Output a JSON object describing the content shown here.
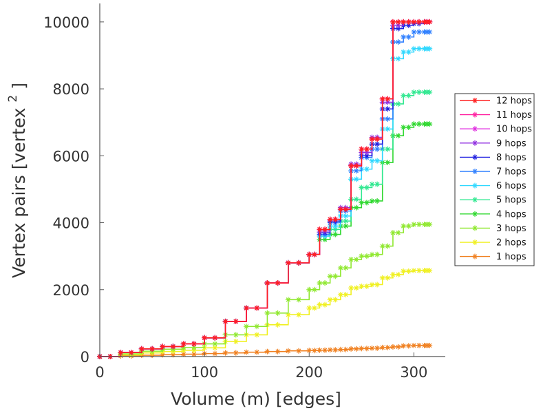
{
  "chart_data": {
    "type": "line",
    "title": "",
    "xlabel": "Volume (m) [edges]",
    "ylabel": "Vertex pairs [vertex",
    "ylabel_superscript": "2",
    "ylabel_close": "]",
    "xlim": [
      0,
      330
    ],
    "ylim": [
      0,
      10100
    ],
    "xticks": [
      0,
      100,
      200,
      300
    ],
    "xtick_labels": [
      "0",
      "100",
      "200",
      "300"
    ],
    "yticks": [
      0,
      2000,
      4000,
      6000,
      8000,
      10000
    ],
    "ytick_labels": [
      "0",
      "2000",
      "4000",
      "6000",
      "8000",
      "10000"
    ],
    "grid": false,
    "legend_position": "right",
    "marker": "asterisk",
    "series": [
      {
        "name": "12 hops",
        "color": "#ff2020",
        "x": [
          0,
          20,
          40,
          60,
          80,
          100,
          120,
          140,
          160,
          180,
          200,
          210,
          220,
          230,
          240,
          250,
          260,
          270,
          280,
          290,
          300,
          310,
          315
        ],
        "y": [
          0,
          120,
          230,
          300,
          380,
          560,
          1050,
          1450,
          2200,
          2800,
          3050,
          3800,
          4100,
          4400,
          5700,
          6200,
          6500,
          7700,
          10000,
          10000,
          10000,
          10000,
          10000
        ]
      },
      {
        "name": "11 hops",
        "color": "#ff20a0",
        "x": [
          0,
          20,
          40,
          60,
          80,
          100,
          120,
          140,
          160,
          180,
          200,
          210,
          220,
          230,
          240,
          250,
          260,
          270,
          280,
          290,
          300,
          310,
          315
        ],
        "y": [
          0,
          120,
          230,
          300,
          380,
          560,
          1050,
          1450,
          2200,
          2800,
          3050,
          3800,
          4100,
          4400,
          5700,
          6200,
          6500,
          7700,
          10000,
          10000,
          10000,
          10000,
          10000
        ]
      },
      {
        "name": "10 hops",
        "color": "#e030e0",
        "x": [
          0,
          20,
          40,
          60,
          80,
          100,
          120,
          140,
          160,
          180,
          200,
          210,
          220,
          230,
          240,
          250,
          260,
          270,
          280,
          290,
          300,
          310,
          315
        ],
        "y": [
          0,
          120,
          230,
          300,
          380,
          560,
          1050,
          1450,
          2200,
          2800,
          3050,
          3800,
          4100,
          4400,
          5700,
          6200,
          6500,
          7700,
          10000,
          10000,
          10000,
          10000,
          10000
        ]
      },
      {
        "name": "9 hops",
        "color": "#9030e0",
        "x": [
          0,
          20,
          40,
          60,
          80,
          100,
          120,
          140,
          160,
          180,
          200,
          210,
          220,
          230,
          240,
          250,
          260,
          270,
          280,
          290,
          300,
          310,
          315
        ],
        "y": [
          0,
          120,
          230,
          300,
          380,
          560,
          1050,
          1450,
          2200,
          2800,
          3050,
          3750,
          4100,
          4450,
          5750,
          6100,
          6550,
          7600,
          9900,
          10000,
          10000,
          10000,
          10000
        ]
      },
      {
        "name": "8 hops",
        "color": "#2020e0",
        "x": [
          0,
          20,
          40,
          60,
          80,
          100,
          120,
          140,
          160,
          180,
          200,
          210,
          220,
          230,
          240,
          250,
          260,
          270,
          280,
          290,
          300,
          310,
          315
        ],
        "y": [
          0,
          120,
          230,
          300,
          380,
          560,
          1050,
          1450,
          2200,
          2800,
          3050,
          3700,
          4050,
          4400,
          5700,
          6000,
          6350,
          7400,
          9800,
          9900,
          9950,
          10000,
          10000
        ]
      },
      {
        "name": "7 hops",
        "color": "#3080ff",
        "x": [
          0,
          20,
          40,
          60,
          80,
          100,
          120,
          140,
          160,
          180,
          200,
          210,
          220,
          230,
          240,
          250,
          260,
          270,
          280,
          290,
          300,
          310,
          315
        ],
        "y": [
          0,
          120,
          230,
          300,
          380,
          560,
          1050,
          1450,
          2200,
          2800,
          3050,
          3650,
          4000,
          4350,
          5550,
          5950,
          6200,
          7100,
          9400,
          9550,
          9700,
          9700,
          9700
        ]
      },
      {
        "name": "6 hops",
        "color": "#30d8ff",
        "x": [
          0,
          20,
          40,
          60,
          80,
          100,
          120,
          140,
          160,
          180,
          200,
          210,
          220,
          230,
          240,
          250,
          260,
          270,
          280,
          290,
          300,
          310,
          315
        ],
        "y": [
          0,
          120,
          230,
          300,
          380,
          560,
          1050,
          1450,
          2200,
          2800,
          3050,
          3600,
          3900,
          4200,
          5300,
          5600,
          5850,
          6800,
          8900,
          9100,
          9200,
          9200,
          9200
        ]
      },
      {
        "name": "5 hops",
        "color": "#30e890",
        "x": [
          0,
          20,
          40,
          60,
          80,
          100,
          120,
          140,
          160,
          180,
          200,
          210,
          220,
          230,
          240,
          250,
          260,
          270,
          280,
          290,
          300,
          310,
          315
        ],
        "y": [
          0,
          120,
          230,
          300,
          380,
          560,
          1050,
          1450,
          2200,
          2800,
          3050,
          3600,
          3800,
          4050,
          4700,
          5050,
          5150,
          6200,
          7550,
          7800,
          7900,
          7900,
          7900
        ]
      },
      {
        "name": "4 hops",
        "color": "#30d830",
        "x": [
          0,
          20,
          40,
          60,
          80,
          100,
          120,
          140,
          160,
          180,
          200,
          210,
          220,
          230,
          240,
          250,
          260,
          270,
          280,
          290,
          300,
          310,
          315
        ],
        "y": [
          0,
          120,
          230,
          300,
          380,
          560,
          1050,
          1450,
          2200,
          2800,
          3050,
          3500,
          3650,
          3900,
          4450,
          4600,
          4650,
          5800,
          6600,
          6850,
          6950,
          6950,
          6950
        ]
      },
      {
        "name": "3 hops",
        "color": "#90e830",
        "x": [
          0,
          20,
          40,
          60,
          80,
          100,
          120,
          140,
          160,
          180,
          200,
          210,
          220,
          230,
          240,
          250,
          260,
          270,
          280,
          290,
          300,
          310,
          315
        ],
        "y": [
          0,
          80,
          160,
          220,
          270,
          380,
          650,
          900,
          1300,
          1700,
          2000,
          2200,
          2400,
          2650,
          2900,
          3000,
          3050,
          3300,
          3700,
          3900,
          3950,
          3950,
          3950
        ]
      },
      {
        "name": "2 hops",
        "color": "#f0f020",
        "x": [
          0,
          20,
          40,
          60,
          80,
          100,
          120,
          140,
          160,
          180,
          200,
          210,
          220,
          230,
          240,
          250,
          260,
          270,
          280,
          290,
          300,
          310,
          315
        ],
        "y": [
          0,
          50,
          110,
          150,
          190,
          260,
          450,
          650,
          950,
          1250,
          1450,
          1550,
          1700,
          1850,
          2050,
          2100,
          2150,
          2350,
          2450,
          2550,
          2570,
          2570,
          2570
        ]
      },
      {
        "name": "1 hops",
        "color": "#f08020",
        "x": [
          0,
          20,
          40,
          60,
          80,
          100,
          120,
          140,
          160,
          180,
          200,
          210,
          220,
          230,
          240,
          250,
          260,
          270,
          280,
          290,
          300,
          310,
          315
        ],
        "y": [
          0,
          20,
          40,
          55,
          70,
          90,
          110,
          130,
          150,
          170,
          180,
          190,
          200,
          210,
          230,
          240,
          250,
          270,
          290,
          320,
          330,
          330,
          330
        ]
      }
    ]
  }
}
